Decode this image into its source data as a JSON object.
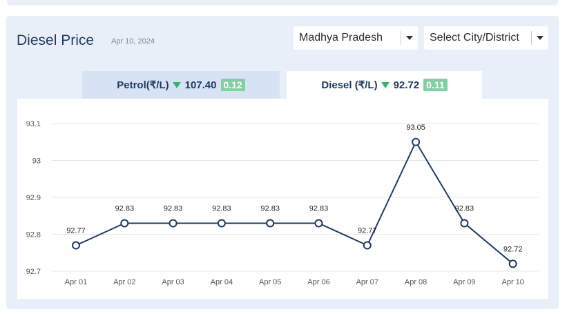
{
  "header": {
    "title": "Diesel Price",
    "date": "Apr 10, 2024"
  },
  "filters": {
    "state": "Madhya Pradesh",
    "city": "Select City/District"
  },
  "tabs": [
    {
      "label": "Petrol(₹/L)",
      "price": "107.40",
      "change": "0.12",
      "active": false
    },
    {
      "label": "Diesel (₹/L)",
      "price": "92.72",
      "change": "0.11",
      "active": true
    }
  ],
  "colors": {
    "line": "#1f3a5f",
    "change_down": "#3bb273",
    "badge": "#82cfa1"
  },
  "chart_data": {
    "type": "line",
    "categories": [
      "Apr 01",
      "Apr 02",
      "Apr 03",
      "Apr 04",
      "Apr 05",
      "Apr 06",
      "Apr 07",
      "Apr 08",
      "Apr 09",
      "Apr 10"
    ],
    "series": [
      {
        "values": [
          92.77,
          92.83,
          92.83,
          92.83,
          92.83,
          92.83,
          92.77,
          93.05,
          92.83,
          92.72
        ]
      }
    ],
    "y_ticks": [
      "92.7",
      "92.8",
      "92.9",
      "93",
      "93.1"
    ],
    "ylim": [
      92.7,
      93.1
    ],
    "grid": true,
    "data_labels": true,
    "legend": false
  }
}
